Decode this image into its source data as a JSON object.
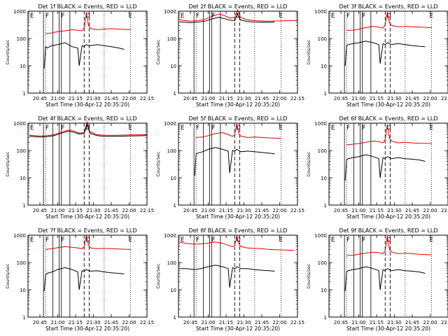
{
  "page": {
    "x_tick_labels": [
      "20:45",
      "21:00",
      "21:15",
      "21:30",
      "21:45",
      "22:00",
      "22:15"
    ],
    "y_tick_labels": [
      "1",
      "10",
      "100",
      "1000"
    ],
    "ylabel": "Counts/sec",
    "colors": {
      "events": "#000000",
      "lld": "#e00000",
      "axes": "#000000"
    }
  },
  "chart_data": [
    {
      "type": "line",
      "title": "Det 1f BLACK = Events, RED = LLD",
      "xlabel": "Start Time (30-Apr-12 20:35:20)",
      "ylabel": "Counts/sec",
      "xlim": [
        20.583,
        22.25
      ],
      "ylim": [
        1,
        1000
      ],
      "yscale": "log",
      "letters": [
        "E",
        "F",
        "F",
        "D",
        "E"
      ],
      "vlines_solid": [
        20.8,
        20.93,
        21.02,
        21.05,
        21.17
      ],
      "vlines_dashed": [
        21.37,
        21.44
      ],
      "vlines_dotted": [
        20.83,
        21.65,
        22.02
      ],
      "series": [
        {
          "name": "LLD",
          "color": "#e00000",
          "x": [
            20.83,
            20.92,
            21.0,
            21.1,
            21.2,
            21.28,
            21.34,
            21.37,
            21.4,
            21.43,
            21.46,
            21.55,
            21.65,
            21.75,
            21.85,
            22.02
          ],
          "y": [
            150,
            160,
            180,
            190,
            210,
            200,
            190,
            250,
            900,
            300,
            230,
            210,
            220,
            230,
            220,
            210
          ]
        },
        {
          "name": "Events",
          "color": "#000000",
          "x": [
            20.81,
            20.83,
            20.85,
            20.92,
            21.0,
            21.1,
            21.2,
            21.28,
            21.3,
            21.34,
            21.37,
            21.4,
            21.43,
            21.46,
            21.55,
            21.65,
            21.75,
            21.85,
            21.93
          ],
          "y": [
            8,
            50,
            45,
            55,
            60,
            70,
            50,
            45,
            10,
            55,
            50,
            60,
            55,
            55,
            60,
            55,
            50,
            45,
            40
          ]
        }
      ]
    },
    {
      "type": "line",
      "title": "Det 2f BLACK = Events, RED = LLD",
      "xlabel": "Start Time (30-Apr-12 20:35:20)",
      "ylabel": "Counts/sec",
      "xlim": [
        20.583,
        22.25
      ],
      "ylim": [
        1,
        1000
      ],
      "yscale": "log",
      "letters": [
        "E",
        "F",
        "F",
        "D",
        "E"
      ],
      "vlines_solid": [
        20.8,
        20.93,
        21.02,
        21.05,
        21.17
      ],
      "vlines_dashed": [
        21.37,
        21.44
      ],
      "vlines_dotted": [
        20.83,
        21.65,
        22.02
      ],
      "series": [
        {
          "name": "LLD",
          "color": "#e00000",
          "x": [
            20.6,
            20.75,
            20.85,
            20.95,
            21.05,
            21.15,
            21.22,
            21.3,
            21.37,
            21.41,
            21.45,
            21.55,
            21.65,
            21.8,
            22.0,
            22.25
          ],
          "y": [
            480,
            430,
            450,
            500,
            650,
            780,
            700,
            560,
            600,
            1100,
            600,
            480,
            450,
            430,
            440,
            460
          ]
        },
        {
          "name": "Events",
          "color": "#000000",
          "x": [
            20.6,
            20.75,
            20.85,
            20.95,
            21.05,
            21.15,
            21.22,
            21.3,
            21.37,
            21.41,
            21.45,
            21.55,
            21.65,
            21.8,
            21.93
          ],
          "y": [
            410,
            380,
            400,
            430,
            520,
            600,
            540,
            470,
            450,
            800,
            480,
            420,
            400,
            390,
            400
          ]
        }
      ]
    },
    {
      "type": "line",
      "title": "Det 3f BLACK = Events, RED = LLD",
      "xlabel": "Start Time (30-Apr-12 20:35:20)",
      "ylabel": "Counts/sec",
      "xlim": [
        20.583,
        22.25
      ],
      "ylim": [
        1,
        1000
      ],
      "yscale": "log",
      "letters": [
        "E",
        "F",
        "F",
        "D",
        "E"
      ],
      "vlines_solid": [
        20.8,
        20.93,
        21.02,
        21.05,
        21.17
      ],
      "vlines_dashed": [
        21.37,
        21.44
      ],
      "vlines_dotted": [
        20.83,
        21.65,
        22.02
      ],
      "series": [
        {
          "name": "LLD",
          "color": "#e00000",
          "x": [
            20.83,
            20.92,
            21.0,
            21.1,
            21.2,
            21.28,
            21.34,
            21.37,
            21.4,
            21.43,
            21.46,
            21.55,
            21.65,
            21.75,
            21.85,
            22.02
          ],
          "y": [
            200,
            200,
            220,
            250,
            280,
            260,
            240,
            320,
            950,
            380,
            300,
            270,
            280,
            270,
            260,
            250
          ]
        },
        {
          "name": "Events",
          "color": "#000000",
          "x": [
            20.81,
            20.83,
            20.85,
            20.92,
            21.0,
            21.1,
            21.2,
            21.28,
            21.3,
            21.34,
            21.37,
            21.4,
            21.43,
            21.46,
            21.55,
            21.65,
            21.75,
            21.85,
            21.93
          ],
          "y": [
            10,
            55,
            60,
            65,
            70,
            80,
            70,
            60,
            12,
            65,
            60,
            70,
            65,
            60,
            65,
            60,
            55,
            52,
            50
          ]
        }
      ]
    },
    {
      "type": "line",
      "title": "Det 4f BLACK = Events, RED = LLD",
      "xlabel": "Start Time (30-Apr-12 20:35:20)",
      "ylabel": "Counts/sec",
      "xlim": [
        20.583,
        22.25
      ],
      "ylim": [
        1,
        1000
      ],
      "yscale": "log",
      "letters": [
        "E",
        "F",
        "F",
        "D",
        "E"
      ],
      "vlines_solid": [
        20.8,
        20.93,
        21.02,
        21.05,
        21.17
      ],
      "vlines_dashed": [
        21.37,
        21.44
      ],
      "vlines_dotted": [
        20.83,
        21.65,
        22.02
      ],
      "series": [
        {
          "name": "LLD",
          "color": "#e00000",
          "x": [
            20.6,
            20.75,
            20.85,
            20.95,
            21.05,
            21.15,
            21.22,
            21.3,
            21.37,
            21.41,
            21.45,
            21.55,
            21.65,
            21.8,
            22.0,
            22.25
          ],
          "y": [
            360,
            340,
            350,
            380,
            470,
            560,
            520,
            430,
            450,
            1100,
            480,
            380,
            360,
            360,
            370,
            380
          ]
        },
        {
          "name": "Events",
          "color": "#000000",
          "x": [
            20.6,
            20.75,
            20.85,
            20.95,
            21.05,
            21.15,
            21.22,
            21.3,
            21.37,
            21.41,
            21.45,
            21.55,
            21.65,
            21.8,
            22.0,
            22.25
          ],
          "y": [
            330,
            310,
            320,
            350,
            430,
            510,
            470,
            400,
            420,
            900,
            430,
            350,
            330,
            330,
            340,
            350
          ]
        }
      ]
    },
    {
      "type": "line",
      "title": "Det 5f BLACK = Events, RED = LLD",
      "xlabel": "Start Time (30-Apr-12 20:35:20)",
      "ylabel": "Counts/sec",
      "xlim": [
        20.583,
        22.25
      ],
      "ylim": [
        1,
        1000
      ],
      "yscale": "log",
      "letters": [
        "E",
        "F",
        "F",
        "D",
        "E"
      ],
      "vlines_solid": [
        20.8,
        20.93,
        21.02,
        21.05,
        21.17
      ],
      "vlines_dashed": [
        21.37,
        21.44
      ],
      "vlines_dotted": [
        20.83,
        21.65,
        22.02
      ],
      "series": [
        {
          "name": "LLD",
          "color": "#e00000",
          "x": [
            20.83,
            20.92,
            21.0,
            21.1,
            21.2,
            21.28,
            21.34,
            21.37,
            21.4,
            21.43,
            21.46,
            21.55,
            21.65,
            21.75,
            21.85,
            22.02
          ],
          "y": [
            300,
            310,
            350,
            420,
            450,
            380,
            330,
            380,
            950,
            400,
            330,
            300,
            310,
            300,
            290,
            280
          ]
        },
        {
          "name": "Events",
          "color": "#000000",
          "x": [
            20.81,
            20.83,
            20.85,
            20.92,
            21.0,
            21.1,
            21.2,
            21.28,
            21.3,
            21.34,
            21.37,
            21.4,
            21.43,
            21.46,
            21.55,
            21.65,
            21.75,
            21.85,
            21.93
          ],
          "y": [
            12,
            75,
            80,
            90,
            110,
            130,
            110,
            95,
            15,
            100,
            95,
            110,
            100,
            90,
            95,
            90,
            85,
            80,
            75
          ]
        }
      ]
    },
    {
      "type": "line",
      "title": "Det 6f BLACK = Events, RED = LLD",
      "xlabel": "Start Time (30-Apr-12 20:35:20)",
      "ylabel": "Counts/sec",
      "xlim": [
        20.583,
        22.25
      ],
      "ylim": [
        1,
        1000
      ],
      "yscale": "log",
      "letters": [
        "E",
        "F",
        "F",
        "D",
        "E"
      ],
      "vlines_solid": [
        20.8,
        20.93,
        21.02,
        21.05,
        21.17
      ],
      "vlines_dashed": [
        21.37,
        21.44
      ],
      "vlines_dotted": [
        20.83,
        21.65,
        22.02
      ],
      "series": [
        {
          "name": "LLD",
          "color": "#e00000",
          "x": [
            20.83,
            20.92,
            21.0,
            21.1,
            21.2,
            21.28,
            21.34,
            21.37,
            21.4,
            21.43,
            21.46,
            21.55,
            21.65,
            21.75,
            21.85,
            22.02
          ],
          "y": [
            160,
            170,
            180,
            200,
            220,
            210,
            190,
            260,
            900,
            280,
            220,
            190,
            200,
            190,
            185,
            180
          ]
        },
        {
          "name": "Events",
          "color": "#000000",
          "x": [
            20.81,
            20.83,
            20.85,
            20.92,
            21.0,
            21.1,
            21.2,
            21.28,
            21.3,
            21.34,
            21.37,
            21.4,
            21.43,
            21.46,
            21.55,
            21.65,
            21.75,
            21.85,
            21.93
          ],
          "y": [
            8,
            45,
            50,
            55,
            60,
            70,
            60,
            50,
            10,
            55,
            50,
            60,
            55,
            50,
            55,
            50,
            48,
            45,
            40
          ]
        }
      ]
    },
    {
      "type": "line",
      "title": "Det 7f BLACK = Events, RED = LLD",
      "xlabel": "Start Time (30-Apr-12 20:35:20)",
      "ylabel": "Counts/sec",
      "xlim": [
        20.583,
        22.25
      ],
      "ylim": [
        1,
        1000
      ],
      "yscale": "log",
      "letters": [
        "E",
        "F",
        "F",
        "D",
        "E"
      ],
      "vlines_solid": [
        20.8,
        20.93,
        21.02,
        21.05,
        21.17
      ],
      "vlines_dashed": [
        21.37,
        21.44
      ],
      "vlines_dotted": [
        20.83,
        21.65,
        22.02
      ],
      "series": [
        {
          "name": "LLD",
          "color": "#e00000",
          "x": [
            20.83,
            20.92,
            21.0,
            21.1,
            21.2,
            21.28,
            21.34,
            21.37,
            21.4,
            21.43,
            21.46,
            21.55,
            21.65,
            21.75,
            21.85,
            22.02
          ],
          "y": [
            300,
            320,
            350,
            380,
            360,
            340,
            320,
            380,
            1000,
            420,
            340,
            320,
            330,
            320,
            310,
            300
          ]
        },
        {
          "name": "Events",
          "color": "#000000",
          "x": [
            20.81,
            20.83,
            20.85,
            20.92,
            21.0,
            21.1,
            21.2,
            21.28,
            21.3,
            21.34,
            21.37,
            21.4,
            21.43,
            21.46,
            21.55,
            21.65,
            21.75,
            21.85,
            21.93
          ],
          "y": [
            9,
            35,
            40,
            45,
            55,
            65,
            55,
            45,
            10,
            50,
            48,
            55,
            50,
            48,
            50,
            45,
            42,
            40,
            38
          ]
        }
      ]
    },
    {
      "type": "line",
      "title": "Det 8f BLACK = Events, RED = LLD",
      "xlabel": "Start Time (30-Apr-12 20:35:20)",
      "ylabel": "Counts/sec",
      "xlim": [
        20.583,
        22.25
      ],
      "ylim": [
        1,
        1000
      ],
      "yscale": "log",
      "letters": [
        "E",
        "F",
        "F",
        "D",
        "E"
      ],
      "vlines_solid": [
        20.8,
        20.93,
        21.02,
        21.05,
        21.17
      ],
      "vlines_dashed": [
        21.37,
        21.44
      ],
      "vlines_dotted": [
        20.83,
        21.65,
        22.02
      ],
      "series": [
        {
          "name": "LLD",
          "color": "#e00000",
          "x": [
            20.6,
            20.7,
            20.8,
            20.9,
            21.0,
            21.1,
            21.2,
            21.28,
            21.34,
            21.37,
            21.4,
            21.43,
            21.46,
            21.55,
            21.65,
            21.75,
            21.85,
            22.02,
            22.2
          ],
          "y": [
            550,
            500,
            470,
            480,
            520,
            560,
            500,
            430,
            380,
            420,
            950,
            450,
            380,
            340,
            330,
            320,
            300,
            290,
            280
          ]
        },
        {
          "name": "Events",
          "color": "#000000",
          "x": [
            20.6,
            20.7,
            20.8,
            20.9,
            21.0,
            21.1,
            21.2,
            21.28,
            21.3,
            21.34,
            21.37,
            21.4,
            21.43,
            21.46,
            21.55,
            21.65,
            21.75,
            21.85,
            21.93
          ],
          "y": [
            60,
            60,
            55,
            60,
            70,
            80,
            70,
            60,
            12,
            65,
            60,
            70,
            65,
            60,
            60,
            55,
            52,
            50,
            48
          ]
        }
      ]
    },
    {
      "type": "line",
      "title": "Det 9f BLACK = Events, RED = LLD",
      "xlabel": "Start Time (30-Apr-12 20:35:20)",
      "ylabel": "Counts/sec",
      "xlim": [
        20.583,
        22.25
      ],
      "ylim": [
        1,
        1000
      ],
      "yscale": "log",
      "letters": [
        "E",
        "F",
        "F",
        "D",
        "E"
      ],
      "vlines_solid": [
        20.8,
        20.93,
        21.02,
        21.05,
        21.17
      ],
      "vlines_dashed": [
        21.37,
        21.44
      ],
      "vlines_dotted": [
        20.83,
        21.65,
        22.02
      ],
      "series": [
        {
          "name": "LLD",
          "color": "#e00000",
          "x": [
            20.83,
            20.92,
            21.0,
            21.1,
            21.2,
            21.28,
            21.34,
            21.37,
            21.4,
            21.43,
            21.46,
            21.55,
            21.65,
            21.75,
            21.85,
            22.02
          ],
          "y": [
            180,
            185,
            200,
            220,
            240,
            230,
            210,
            280,
            950,
            300,
            240,
            210,
            220,
            210,
            200,
            190
          ]
        },
        {
          "name": "Events",
          "color": "#000000",
          "x": [
            20.81,
            20.83,
            20.85,
            20.92,
            21.0,
            21.1,
            21.2,
            21.28,
            21.3,
            21.34,
            21.37,
            21.4,
            21.43,
            21.46,
            21.55,
            21.65,
            21.75,
            21.85,
            21.93
          ],
          "y": [
            9,
            45,
            50,
            55,
            60,
            70,
            60,
            50,
            10,
            55,
            50,
            60,
            55,
            50,
            55,
            50,
            48,
            45,
            40
          ]
        }
      ]
    }
  ]
}
